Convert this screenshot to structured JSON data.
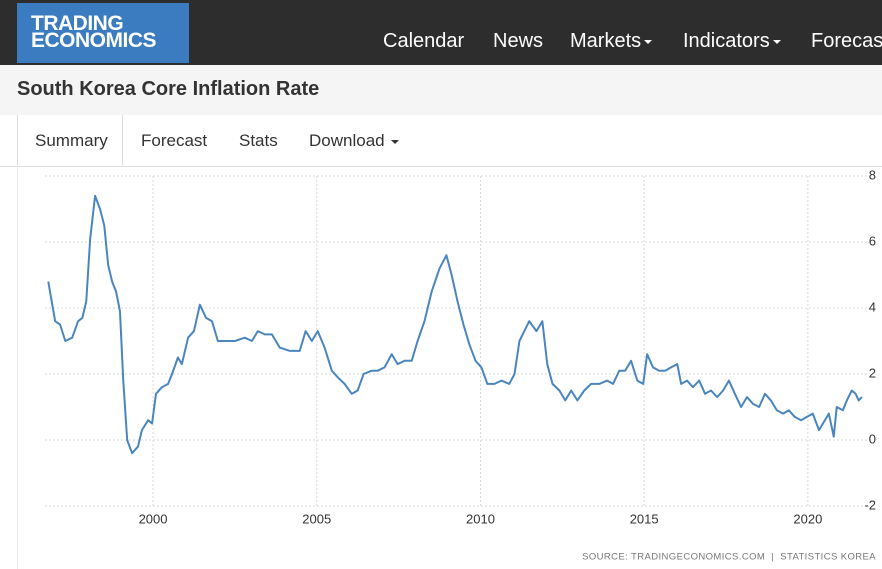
{
  "logo": {
    "line1": "TRADING",
    "line2": "ECONOMICS"
  },
  "nav": [
    "Calendar",
    "News",
    "Markets",
    "Indicators",
    "Forecast"
  ],
  "tabs": [
    "Summary",
    "Forecast",
    "Stats",
    "Download"
  ],
  "chart_data": {
    "type": "line",
    "title": "South Korea Core Inflation Rate",
    "source": "SOURCE: TRADINGECONOMICS.COM  |  STATISTICS KOREA",
    "color": "#4a86bd",
    "grid": true,
    "xlim": [
      1996.7,
      2022.05
    ],
    "xticks": [
      2000,
      2005,
      2010,
      2015,
      2020
    ],
    "ylim": [
      -2,
      8
    ],
    "yticks": [
      -2,
      0,
      2,
      4,
      6,
      8
    ],
    "x": [
      1996.8,
      1997.01,
      1997.16,
      1997.32,
      1997.53,
      1997.71,
      1997.84,
      1997.96,
      1998.08,
      1998.23,
      1998.38,
      1998.51,
      1998.63,
      1998.75,
      1998.87,
      1998.99,
      1999.09,
      1999.21,
      1999.36,
      1999.54,
      1999.66,
      1999.85,
      1999.97,
      2000.09,
      2000.27,
      2000.46,
      2000.58,
      2000.76,
      2000.88,
      2001.07,
      2001.25,
      2001.43,
      2001.62,
      2001.8,
      2001.98,
      2002.23,
      2002.5,
      2002.8,
      2003.02,
      2003.2,
      2003.41,
      2003.63,
      2003.87,
      2004.18,
      2004.48,
      2004.66,
      2004.85,
      2005.03,
      2005.24,
      2005.46,
      2005.64,
      2005.85,
      2006.07,
      2006.25,
      2006.43,
      2006.68,
      2006.86,
      2007.07,
      2007.29,
      2007.47,
      2007.68,
      2007.9,
      2008.08,
      2008.29,
      2008.51,
      2008.75,
      2008.96,
      2009.12,
      2009.3,
      2009.48,
      2009.66,
      2009.85,
      2010.03,
      2010.21,
      2010.43,
      2010.64,
      2010.88,
      2011.04,
      2011.19,
      2011.34,
      2011.49,
      2011.71,
      2011.89,
      2012.04,
      2012.2,
      2012.41,
      2012.59,
      2012.77,
      2012.96,
      2013.17,
      2013.38,
      2013.63,
      2013.87,
      2014.05,
      2014.24,
      2014.42,
      2014.6,
      2014.79,
      2014.97,
      2015.09,
      2015.27,
      2015.46,
      2015.64,
      2015.82,
      2016.01,
      2016.13,
      2016.31,
      2016.49,
      2016.68,
      2016.86,
      2017.04,
      2017.23,
      2017.41,
      2017.59,
      2017.77,
      2017.96,
      2018.14,
      2018.32,
      2018.51,
      2018.69,
      2018.87,
      2019.05,
      2019.24,
      2019.42,
      2019.6,
      2019.79,
      2019.97,
      2020.15,
      2020.34,
      2020.52,
      2020.64,
      2020.79,
      2020.88,
      2021.07,
      2021.19,
      2021.34,
      2021.46,
      2021.55,
      2021.65
    ],
    "values": [
      4.8,
      3.6,
      3.5,
      3.0,
      3.1,
      3.6,
      3.7,
      4.2,
      6.1,
      7.4,
      7.0,
      6.5,
      5.3,
      4.8,
      4.5,
      3.9,
      1.8,
      0.0,
      -0.4,
      -0.2,
      0.3,
      0.6,
      0.5,
      1.4,
      1.6,
      1.7,
      2.0,
      2.5,
      2.3,
      3.1,
      3.3,
      4.1,
      3.7,
      3.6,
      3.0,
      3.0,
      3.0,
      3.1,
      3.0,
      3.3,
      3.2,
      3.2,
      2.8,
      2.7,
      2.7,
      3.3,
      3.0,
      3.3,
      2.8,
      2.1,
      1.9,
      1.7,
      1.4,
      1.5,
      2.0,
      2.1,
      2.1,
      2.2,
      2.6,
      2.3,
      2.4,
      2.4,
      3.0,
      3.6,
      4.5,
      5.2,
      5.6,
      5.0,
      4.2,
      3.5,
      2.9,
      2.4,
      2.2,
      1.7,
      1.7,
      1.8,
      1.7,
      2.0,
      3.0,
      3.3,
      3.6,
      3.3,
      3.6,
      2.3,
      1.7,
      1.5,
      1.2,
      1.5,
      1.2,
      1.5,
      1.7,
      1.7,
      1.8,
      1.7,
      2.1,
      2.1,
      2.4,
      1.8,
      1.7,
      2.6,
      2.2,
      2.1,
      2.1,
      2.2,
      2.3,
      1.7,
      1.8,
      1.6,
      1.8,
      1.4,
      1.5,
      1.3,
      1.5,
      1.8,
      1.4,
      1.0,
      1.3,
      1.1,
      1.0,
      1.4,
      1.2,
      0.9,
      0.8,
      0.9,
      0.7,
      0.6,
      0.7,
      0.8,
      0.3,
      0.6,
      0.8,
      0.1,
      1.0,
      0.9,
      1.2,
      1.5,
      1.4,
      1.2,
      1.3
    ]
  }
}
